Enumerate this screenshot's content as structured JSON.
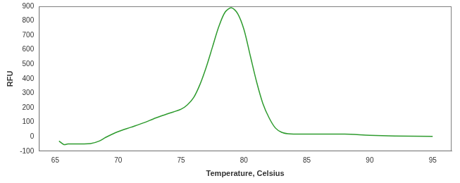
{
  "chart_data": {
    "type": "line",
    "x_label": "Temperature, Celsius",
    "y_label": "RFU",
    "x": [
      65.3,
      65.7,
      66,
      67,
      67.8,
      68.5,
      69,
      70,
      71,
      72,
      73,
      74,
      75,
      75.5,
      76,
      76.5,
      77,
      77.5,
      78,
      78.5,
      79,
      79.5,
      80,
      80.5,
      81,
      81.5,
      82,
      82.5,
      83,
      83.5,
      84,
      85,
      88,
      90,
      92,
      95
    ],
    "series": [
      {
        "name": "RFU",
        "color": "#2e9b2e",
        "values": [
          -30,
          -55,
          -50,
          -50,
          -48,
          -30,
          -5,
          35,
          65,
          95,
          130,
          160,
          190,
          220,
          270,
          360,
          480,
          620,
          760,
          860,
          890,
          850,
          740,
          560,
          380,
          230,
          130,
          60,
          30,
          20,
          18,
          18,
          18,
          10,
          5,
          2
        ]
      }
    ],
    "xlim": [
      63.7,
      96.5
    ],
    "xticks": [
      65,
      70,
      75,
      80,
      85,
      90,
      95
    ],
    "ylim": [
      -100,
      900
    ],
    "yticks": [
      -100,
      0,
      100,
      200,
      300,
      400,
      500,
      600,
      700,
      800,
      900
    ],
    "grid": false
  }
}
